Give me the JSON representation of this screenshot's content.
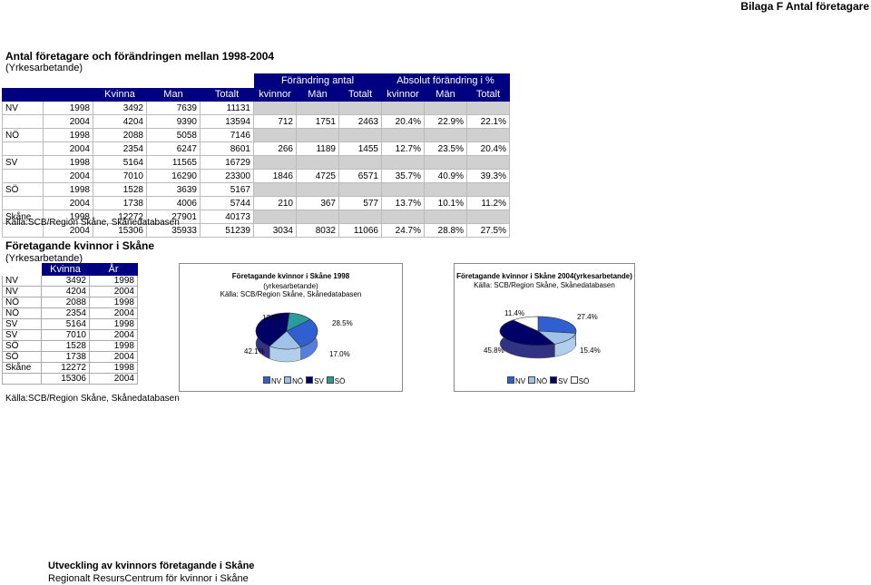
{
  "header": {
    "right_title": "Bilaga F Antal företagare"
  },
  "section1": {
    "title": "Antal företagare och förändringen mellan 1998-2004",
    "subtitle": "(Yrkesarbetande)",
    "group_headers": [
      "Förändring antal",
      "Absolut förändring i %"
    ],
    "columns": [
      "Kvinna",
      "Man",
      "Totalt",
      "kvinnor",
      "Män",
      "Totalt",
      "kvinnor",
      "Män",
      "Totalt"
    ],
    "rows": [
      {
        "region": "NV",
        "year": "1998",
        "vals": [
          "3492",
          "7639",
          "11131",
          "",
          "",
          "",
          "",
          "",
          ""
        ]
      },
      {
        "region": "",
        "year": "2004",
        "vals": [
          "4204",
          "9390",
          "13594",
          "712",
          "1751",
          "2463",
          "20.4%",
          "22.9%",
          "22.1%"
        ]
      },
      {
        "region": "NÖ",
        "year": "1998",
        "vals": [
          "2088",
          "5058",
          "7146",
          "",
          "",
          "",
          "",
          "",
          ""
        ]
      },
      {
        "region": "",
        "year": "2004",
        "vals": [
          "2354",
          "6247",
          "8601",
          "266",
          "1189",
          "1455",
          "12.7%",
          "23.5%",
          "20.4%"
        ]
      },
      {
        "region": "SV",
        "year": "1998",
        "vals": [
          "5164",
          "11565",
          "16729",
          "",
          "",
          "",
          "",
          "",
          ""
        ]
      },
      {
        "region": "",
        "year": "2004",
        "vals": [
          "7010",
          "16290",
          "23300",
          "1846",
          "4725",
          "6571",
          "35.7%",
          "40.9%",
          "39.3%"
        ]
      },
      {
        "region": "SÖ",
        "year": "1998",
        "vals": [
          "1528",
          "3639",
          "5167",
          "",
          "",
          "",
          "",
          "",
          ""
        ]
      },
      {
        "region": "",
        "year": "2004",
        "vals": [
          "1738",
          "4006",
          "5744",
          "210",
          "367",
          "577",
          "13.7%",
          "10.1%",
          "11.2%"
        ]
      },
      {
        "region": "Skåne",
        "year": "1998",
        "vals": [
          "12272",
          "27901",
          "40173",
          "",
          "",
          "",
          "",
          "",
          ""
        ]
      },
      {
        "region": "",
        "year": "2004",
        "vals": [
          "15306",
          "35933",
          "51239",
          "3034",
          "8032",
          "11066",
          "24.7%",
          "28.8%",
          "27.5%"
        ]
      }
    ],
    "source": "Källa:SCB/Region Skåne, Skånedatabasen"
  },
  "section2": {
    "title": "Företagande kvinnor i Skåne",
    "subtitle": "(Yrkesarbetande)",
    "columns": [
      "Kvinna",
      "År"
    ],
    "rows": [
      [
        "NV",
        "3492",
        "1998"
      ],
      [
        "NV",
        "4204",
        "2004"
      ],
      [
        "NÖ",
        "2088",
        "1998"
      ],
      [
        "NÖ",
        "2354",
        "2004"
      ],
      [
        "SV",
        "5164",
        "1998"
      ],
      [
        "SV",
        "7010",
        "2004"
      ],
      [
        "SÖ",
        "1528",
        "1998"
      ],
      [
        "SÖ",
        "1738",
        "2004"
      ],
      [
        "Skåne",
        "12272",
        "1998"
      ],
      [
        "",
        "15306",
        "2004"
      ]
    ],
    "source": "Källa:SCB/Region Skåne, Skånedatabasen"
  },
  "chart_data": [
    {
      "type": "pie",
      "title": "Företagande kvinnor i Skåne 1998",
      "subtitle": "(yrkesarbetande)",
      "source": "Källa: SCB/Region Skåne, Skånedatabasen",
      "categories": [
        "NV",
        "NÖ",
        "SV",
        "SÖ"
      ],
      "values": [
        28.5,
        17.0,
        42.1,
        12.5
      ],
      "labels": [
        "28.5%",
        "17.0%",
        "42.1%",
        "12.5%"
      ],
      "colors": [
        "#2f5fd0",
        "#9ec3e6",
        "#000066",
        "#2a9c9c"
      ],
      "legend": "bottom"
    },
    {
      "type": "pie",
      "title": "Företagande kvinnor i Skåne 2004(yrkesarbetande)",
      "source": "Källa: SCB/Region Skåne, Skånedatabasen",
      "categories": [
        "NV",
        "NÖ",
        "SV",
        "SÖ"
      ],
      "values": [
        27.4,
        15.4,
        45.8,
        11.4
      ],
      "labels": [
        "27.4%",
        "15.4%",
        "45.8%",
        "11.4%"
      ],
      "colors": [
        "#2f5fd0",
        "#9ec3e6",
        "#000066",
        "#ffffff"
      ],
      "legend": "bottom"
    }
  ],
  "footer": {
    "line1": "Utveckling av kvinnors företagande i Skåne",
    "line2": "Regionalt ResursCentrum för kvinnor i Skåne"
  }
}
